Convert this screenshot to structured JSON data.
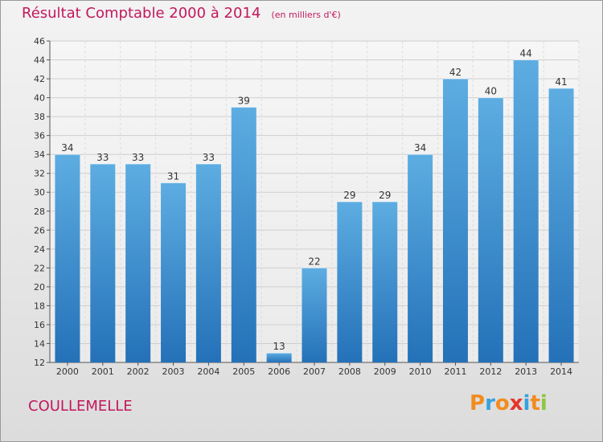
{
  "title": "Résultat Comptable 2000 à 2014",
  "unit_label": "(en milliers d'€)",
  "commune": "COULLEMELLE",
  "logo": {
    "text": "Proxiti",
    "colors": [
      "#f28c1e",
      "#37a2dd",
      "#f28c1e",
      "#e6342b",
      "#37a2dd",
      "#f28c1e",
      "#8cc63f"
    ]
  },
  "colors": {
    "title": "#c2185b",
    "bar_light": "#5dade2",
    "bar_dark": "#2471b8"
  },
  "chart_data": {
    "type": "bar",
    "categories": [
      "2000",
      "2001",
      "2002",
      "2003",
      "2004",
      "2005",
      "2006",
      "2007",
      "2008",
      "2009",
      "2010",
      "2011",
      "2012",
      "2013",
      "2014"
    ],
    "values": [
      34,
      33,
      33,
      31,
      33,
      39,
      13,
      22,
      29,
      29,
      34,
      42,
      40,
      44,
      41
    ],
    "ylim": [
      12,
      46
    ],
    "yticks": [
      12,
      14,
      16,
      18,
      20,
      22,
      24,
      26,
      28,
      30,
      32,
      34,
      36,
      38,
      40,
      42,
      44,
      46
    ],
    "grid": true,
    "legend": "none"
  }
}
